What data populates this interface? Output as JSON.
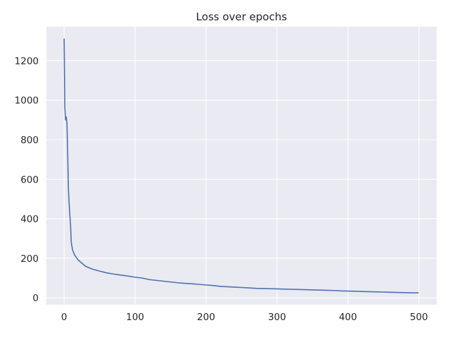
{
  "chart_data": {
    "type": "line",
    "title": "Loss over epochs",
    "xlabel": "",
    "ylabel": "",
    "xlim": [
      -25,
      525
    ],
    "ylim": [
      -35,
      1372
    ],
    "grid": true,
    "legend": "none",
    "colors": {
      "background": "#eaeaf2",
      "grid": "#ffffff",
      "line": "#4c72b0"
    },
    "xticks": [
      0,
      100,
      200,
      300,
      400,
      500
    ],
    "xtick_labels": [
      "0",
      "100",
      "200",
      "300",
      "400",
      "500"
    ],
    "yticks": [
      0,
      200,
      400,
      600,
      800,
      1000,
      1200
    ],
    "ytick_labels": [
      "0",
      "200",
      "400",
      "600",
      "800",
      "1000",
      "1200"
    ],
    "series": [
      {
        "x": [
          0,
          1,
          2,
          3,
          4,
          5,
          6,
          7,
          8,
          9,
          10,
          12,
          15,
          20,
          25,
          30,
          35,
          40,
          45,
          50,
          60,
          70,
          80,
          90,
          100,
          110,
          120,
          130,
          140,
          150,
          160,
          170,
          180,
          190,
          200,
          210,
          220,
          230,
          240,
          250,
          260,
          270,
          280,
          290,
          300,
          310,
          320,
          330,
          340,
          350,
          360,
          370,
          380,
          390,
          400,
          410,
          420,
          430,
          440,
          450,
          460,
          470,
          480,
          490,
          499
        ],
        "values": [
          1310,
          960,
          900,
          915,
          880,
          730,
          550,
          480,
          420,
          370,
          280,
          240,
          215,
          190,
          175,
          160,
          152,
          145,
          140,
          135,
          126,
          120,
          115,
          110,
          104,
          100,
          92,
          88,
          84,
          80,
          76,
          73,
          71,
          68,
          65,
          62,
          58,
          56,
          54,
          52,
          50,
          48,
          47,
          46,
          45,
          44,
          43,
          42,
          41,
          40,
          39,
          38,
          37,
          35,
          34,
          33,
          32,
          31,
          30,
          29,
          28,
          27,
          26,
          25,
          25
        ]
      }
    ]
  }
}
